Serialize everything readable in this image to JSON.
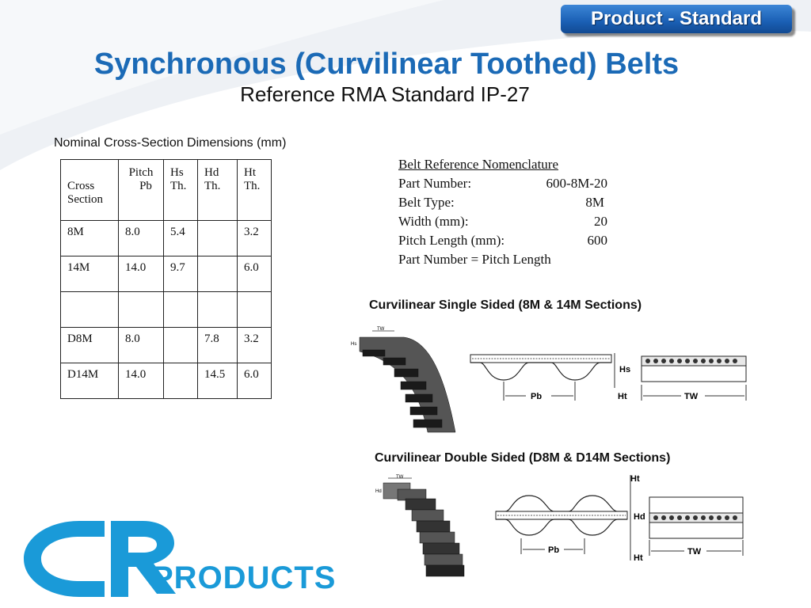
{
  "badge": "Product - Standard",
  "title": "Synchronous (Curvilinear Toothed) Belts",
  "subtitle": "Reference RMA Standard IP-27",
  "table_caption": "Nominal Cross-Section Dimensions (mm)",
  "table": {
    "headers": [
      {
        "line1": "",
        "line2": "Cross",
        "line3": "Section"
      },
      {
        "line1": "Pitch",
        "line2": "Pb",
        "line3": ""
      },
      {
        "line1": "Hs",
        "line2": "Th.",
        "line3": ""
      },
      {
        "line1": "Hd",
        "line2": "Th.",
        "line3": ""
      },
      {
        "line1": "Ht",
        "line2": "Th.",
        "line3": ""
      }
    ],
    "rows": [
      [
        "8M",
        "8.0",
        "5.4",
        "",
        "3.2"
      ],
      [
        "14M",
        "14.0",
        "9.7",
        "",
        "6.0"
      ],
      [
        "",
        "",
        "",
        "",
        ""
      ],
      [
        "D8M",
        "8.0",
        "",
        "7.8",
        "3.2"
      ],
      [
        "D14M",
        "14.0",
        "",
        "14.5",
        "6.0"
      ]
    ]
  },
  "nomenclature": {
    "heading": "Belt Reference Nomenclature",
    "rows": [
      {
        "label": "Part Number:",
        "value": "600-8M-20"
      },
      {
        "label": "Belt Type:",
        "value": "8M"
      },
      {
        "label": "Width (mm):",
        "value": "20"
      },
      {
        "label": "Pitch Length (mm):",
        "value": "600"
      }
    ],
    "formula": "Part Number  =  Pitch Length"
  },
  "single_sided": {
    "caption": "Curvilinear Single Sided (8M & 14M Sections)",
    "labels": {
      "tw_small": "TW",
      "hs_small": "Hs",
      "hs": "Hs",
      "ht": "Ht",
      "pb": "Pb",
      "tw": "TW"
    }
  },
  "double_sided": {
    "caption": "Curvilinear Double Sided (D8M & D14M Sections)",
    "labels": {
      "tw_small": "TW",
      "hd_small": "Hd",
      "ht_top": "Ht",
      "hd": "Hd",
      "pb": "Pb",
      "ht_bottom": "Ht",
      "tw": "TW"
    }
  },
  "logo": {
    "text": "PRODUCTS",
    "mark": "CR",
    "color": "#1a9ad8"
  },
  "colors": {
    "title": "#1b6ab6",
    "badge": "#1a5fb4"
  }
}
